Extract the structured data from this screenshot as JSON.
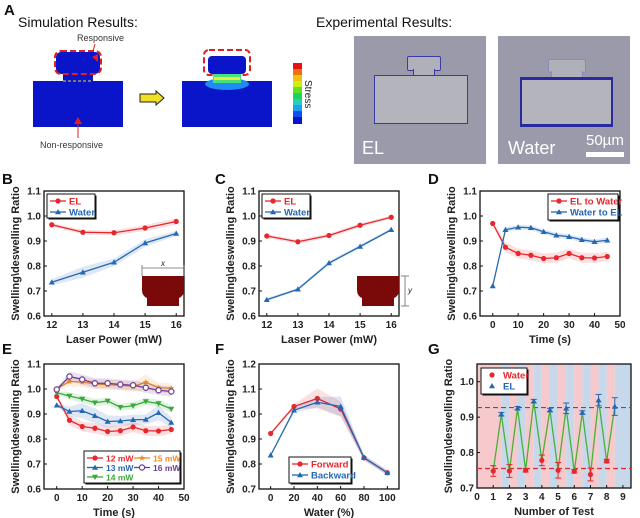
{
  "panel_a": {
    "label": "A",
    "sim_title": "Simulation Results:",
    "exp_title": "Experimental Results:",
    "responsive_label": "Responsive",
    "nonresponsive_label": "Non-responsive",
    "stress_label": "Stress",
    "exp_image_1_label": "EL",
    "exp_image_2_label": "Water",
    "scale_bar_label": "50µm",
    "colors": {
      "block": "#0a14c8",
      "highlight": "#e02020",
      "arrow": "#f0e020"
    }
  },
  "chart_data": [
    {
      "panel": "B",
      "type": "line",
      "xlabel": "Laser Power (mW)",
      "ylabel": "Swelling\\deswelling Ratio",
      "x": [
        12,
        13,
        14,
        15,
        16
      ],
      "xlim": [
        11.75,
        16.25
      ],
      "xticks": [
        12,
        13,
        14,
        15,
        16
      ],
      "ylim": [
        0.6,
        1.1
      ],
      "yticks": [
        "0.6",
        "0.7",
        "0.8",
        "0.9",
        "1.0",
        "1.1"
      ],
      "legend": "top-left",
      "inset": "x",
      "series": [
        {
          "name": "EL",
          "color": "#e8262c",
          "marker": "circle",
          "values": [
            0.965,
            0.935,
            0.933,
            0.952,
            0.978
          ],
          "err": [
            0.008,
            0.008,
            0.01,
            0.012,
            0.012
          ]
        },
        {
          "name": "Water",
          "color": "#2468b4",
          "marker": "triangle",
          "values": [
            0.735,
            0.775,
            0.815,
            0.892,
            0.93
          ],
          "err": [
            0.012,
            0.022,
            0.015,
            0.015,
            0.01
          ]
        }
      ]
    },
    {
      "panel": "C",
      "type": "line",
      "xlabel": "Laser Power (mW)",
      "ylabel": "Swelling\\deswelling Ratio",
      "x": [
        12,
        13,
        14,
        15,
        16
      ],
      "xlim": [
        11.75,
        16.25
      ],
      "xticks": [
        12,
        13,
        14,
        15,
        16
      ],
      "ylim": [
        0.6,
        1.1
      ],
      "yticks": [
        "0.6",
        "0.7",
        "0.8",
        "0.9",
        "1.0",
        "1.1"
      ],
      "legend": "top-left",
      "inset": "y",
      "series": [
        {
          "name": "EL",
          "color": "#e8262c",
          "marker": "circle",
          "values": [
            0.92,
            0.897,
            0.922,
            0.963,
            0.995
          ],
          "err": [
            0.008,
            0.008,
            0.008,
            0.008,
            0.006
          ]
        },
        {
          "name": "Water",
          "color": "#2468b4",
          "marker": "triangle",
          "values": [
            0.665,
            0.707,
            0.812,
            0.878,
            0.945
          ],
          "err": [
            0.006,
            0.006,
            0.008,
            0.006,
            0.006
          ]
        }
      ]
    },
    {
      "panel": "D",
      "type": "line",
      "xlabel": "Time (s)",
      "ylabel": "Swelling\\deswelling Ratio",
      "x": [
        0,
        5,
        10,
        15,
        20,
        25,
        30,
        35,
        40,
        45
      ],
      "xlim": [
        -5,
        50
      ],
      "xticks": [
        0,
        10,
        20,
        30,
        40,
        50
      ],
      "ylim": [
        0.6,
        1.1
      ],
      "yticks": [
        "0.6",
        "0.7",
        "0.8",
        "0.9",
        "1.0",
        "1.1"
      ],
      "legend": "top-right",
      "series": [
        {
          "name": "EL to Water",
          "color": "#e8262c",
          "marker": "circle",
          "values": [
            0.97,
            0.875,
            0.85,
            0.843,
            0.83,
            0.833,
            0.85,
            0.833,
            0.832,
            0.838
          ],
          "err": [
            0.005,
            0.02,
            0.02,
            0.02,
            0.02,
            0.02,
            0.02,
            0.02,
            0.02,
            0.018
          ]
        },
        {
          "name": "Water to EL",
          "color": "#2468b4",
          "marker": "triangle",
          "values": [
            0.72,
            0.945,
            0.955,
            0.953,
            0.937,
            0.923,
            0.917,
            0.905,
            0.897,
            0.903
          ],
          "err": [
            0.005,
            0.01,
            0.01,
            0.01,
            0.01,
            0.01,
            0.01,
            0.01,
            0.01,
            0.01
          ]
        }
      ]
    },
    {
      "panel": "E",
      "type": "line",
      "xlabel": "Time (s)",
      "ylabel": "Swelling\\deswelling Ratio",
      "x": [
        0,
        5,
        10,
        15,
        20,
        25,
        30,
        35,
        40,
        45
      ],
      "xlim": [
        -5,
        50
      ],
      "xticks": [
        0,
        10,
        20,
        30,
        40,
        50
      ],
      "ylim": [
        0.6,
        1.1
      ],
      "yticks": [
        "0.6",
        "0.7",
        "0.8",
        "0.9",
        "1.0",
        "1.1"
      ],
      "legend": "bottom-right",
      "series": [
        {
          "name": "12 mW",
          "color": "#e8262c",
          "marker": "circle",
          "values": [
            0.97,
            0.875,
            0.85,
            0.843,
            0.83,
            0.833,
            0.848,
            0.833,
            0.832,
            0.838
          ],
          "err": [
            0.005,
            0.02,
            0.02,
            0.02,
            0.02,
            0.02,
            0.02,
            0.02,
            0.02,
            0.018
          ]
        },
        {
          "name": "13 mW",
          "color": "#2468b4",
          "marker": "triangle",
          "values": [
            0.935,
            0.91,
            0.913,
            0.893,
            0.87,
            0.872,
            0.877,
            0.878,
            0.905,
            0.866
          ],
          "err": [
            0.005,
            0.02,
            0.03,
            0.03,
            0.025,
            0.02,
            0.02,
            0.02,
            0.03,
            0.02
          ]
        },
        {
          "name": "14 mW",
          "color": "#3aa83a",
          "marker": "triangle-down",
          "values": [
            0.985,
            0.972,
            0.96,
            0.945,
            0.952,
            0.927,
            0.933,
            0.95,
            0.942,
            0.92
          ],
          "err": [
            0.005,
            0.015,
            0.015,
            0.015,
            0.015,
            0.015,
            0.015,
            0.015,
            0.015,
            0.015
          ]
        },
        {
          "name": "15 mW",
          "color": "#f28a1e",
          "marker": "star",
          "values": [
            1.0,
            1.03,
            1.028,
            1.02,
            1.017,
            1.015,
            1.01,
            1.027,
            1.005,
            1.003
          ],
          "err": [
            0.005,
            0.02,
            0.02,
            0.02,
            0.02,
            0.02,
            0.02,
            0.03,
            0.02,
            0.02
          ]
        },
        {
          "name": "16 mW",
          "color": "#6a3d9a",
          "marker": "circle-open",
          "values": [
            0.998,
            1.05,
            1.038,
            1.023,
            1.023,
            1.018,
            1.015,
            1.005,
            0.995,
            0.99
          ],
          "err": [
            0.005,
            0.02,
            0.02,
            0.02,
            0.02,
            0.02,
            0.02,
            0.02,
            0.02,
            0.02
          ]
        }
      ]
    },
    {
      "panel": "F",
      "type": "line",
      "xlabel": "Water (%)",
      "ylabel": "Swelling\\deswelling Ratio",
      "x": [
        0,
        20,
        40,
        60,
        80,
        100
      ],
      "xlim": [
        -10,
        110
      ],
      "xticks": [
        0,
        20,
        40,
        60,
        80,
        100
      ],
      "ylim": [
        0.7,
        1.2
      ],
      "yticks": [
        "0.7",
        "0.8",
        "0.9",
        "1.0",
        "1.1",
        "1.2"
      ],
      "legend": "bottom-left",
      "series": [
        {
          "name": "Forward",
          "color": "#e8262c",
          "marker": "circle",
          "values": [
            0.922,
            1.03,
            1.062,
            1.02,
            0.825,
            0.765
          ],
          "err": [
            0.005,
            0.01,
            0.04,
            0.03,
            0.012,
            0.01
          ]
        },
        {
          "name": "Backward",
          "color": "#2468b4",
          "marker": "triangle",
          "values": [
            0.835,
            1.015,
            1.047,
            1.03,
            0.825,
            0.765
          ],
          "err": [
            0.005,
            0.01,
            0.02,
            0.04,
            0.01,
            0.01
          ]
        }
      ]
    },
    {
      "panel": "G",
      "type": "scatter",
      "xlabel": "Number of Test",
      "ylabel": "Swelling\\deswelling Ratio",
      "xlim": [
        0,
        9.5
      ],
      "xticks": [
        0,
        1,
        2,
        3,
        4,
        5,
        6,
        7,
        8,
        9
      ],
      "ylim": [
        0.7,
        1.05
      ],
      "yticks": [
        "0.7",
        "0.8",
        "0.9",
        "1.0"
      ],
      "legend": "top-left",
      "connector_color": "#4caf3c",
      "reference_lines": [
        {
          "name": "Water mean",
          "value": 0.755,
          "color": "#e8262c"
        },
        {
          "name": "EL mean",
          "value": 0.927,
          "color": "#2468b4"
        }
      ],
      "background_bands": {
        "water_color": "#f6c9cc",
        "el_color": "#c6d8ea"
      },
      "series": [
        {
          "name": "Water",
          "color": "#e8262c",
          "marker": "circle",
          "x": [
            1,
            2,
            3,
            4,
            5,
            6,
            7,
            8
          ],
          "values": [
            0.748,
            0.748,
            0.75,
            0.778,
            0.75,
            0.747,
            0.738,
            0.776
          ],
          "err": [
            0.015,
            0.018,
            0.005,
            0.015,
            0.022,
            0.005,
            0.018,
            0.005
          ]
        },
        {
          "name": "EL",
          "color": "#2468b4",
          "marker": "triangle",
          "x": [
            1.5,
            2.5,
            3.5,
            4.5,
            5.5,
            6.5,
            7.5,
            8.5
          ],
          "values": [
            0.908,
            0.925,
            0.945,
            0.92,
            0.925,
            0.913,
            0.948,
            0.93
          ],
          "err": [
            0.005,
            0.005,
            0.005,
            0.005,
            0.015,
            0.005,
            0.016,
            0.025
          ]
        }
      ]
    }
  ]
}
